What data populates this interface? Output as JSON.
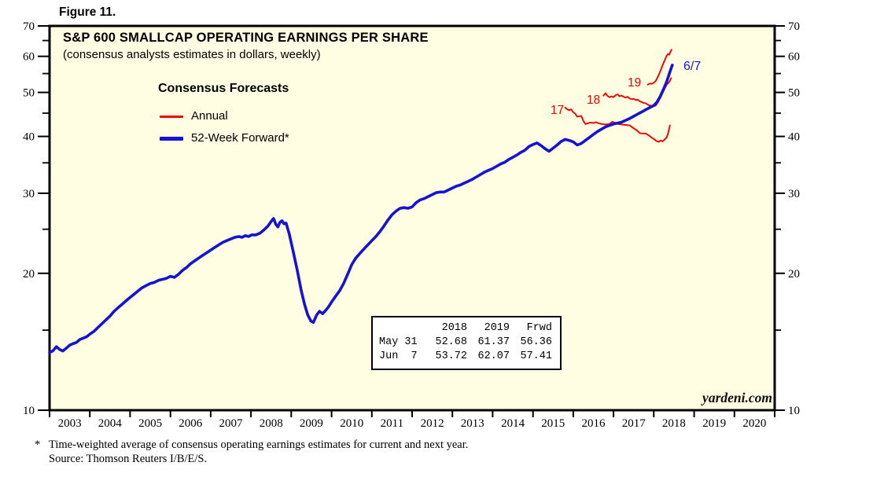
{
  "figure_label": "Figure 11.",
  "chart": {
    "title": "S&P 600 SMALLCAP OPERATING EARNINGS PER SHARE",
    "subtitle": "(consensus analysts estimates in dollars, weekly)",
    "legend_title": "Consensus Forecasts",
    "legend": [
      {
        "label": "Annual",
        "color": "#ee0000"
      },
      {
        "label": "52-Week Forward*",
        "color": "#1414d2"
      }
    ],
    "watermark": "yardeni.com"
  },
  "annotations": [
    {
      "text": "17",
      "color": "#ee0000"
    },
    {
      "text": "18",
      "color": "#ee0000"
    },
    {
      "text": "19",
      "color": "#ee0000"
    },
    {
      "text": "6/7",
      "color": "#1414d2"
    }
  ],
  "inset_table": {
    "col_headers": [
      "2018",
      "2019",
      "Frwd"
    ],
    "rows": [
      {
        "label": "May 31",
        "y2018": "52.68",
        "y2019": "61.37",
        "frwd": "56.36"
      },
      {
        "label": "Jun  7",
        "y2018": "53.72",
        "y2019": "62.07",
        "frwd": "57.41"
      }
    ]
  },
  "footnote": {
    "marker": "*",
    "line1": "Time-weighted average of consensus operating earnings estimates for current and next year.",
    "line2": "Source: Thomson Reuters I/B/E/S."
  },
  "chart_data": {
    "type": "line",
    "title": "S&P 600 SMALLCAP OPERATING EARNINGS PER SHARE",
    "subtitle": "(consensus analysts estimates in dollars, weekly)",
    "y_scale": "log",
    "ylim": [
      10,
      70
    ],
    "xlim": [
      2003,
      2021
    ],
    "plot_bg": "#fffee2",
    "frame_color": "#000000",
    "y_ticks_major": [
      10,
      20,
      30,
      40,
      50,
      60,
      70
    ],
    "y_ticks_minor": [
      15,
      25,
      35,
      45,
      55,
      65
    ],
    "x_tick_years": [
      2003,
      2004,
      2005,
      2006,
      2007,
      2008,
      2009,
      2010,
      2011,
      2012,
      2013,
      2014,
      2015,
      2016,
      2017,
      2018,
      2019,
      2020,
      2021
    ],
    "x_year_labels": [
      "2003",
      "2004",
      "2005",
      "2006",
      "2007",
      "2008",
      "2009",
      "2010",
      "2011",
      "2012",
      "2013",
      "2014",
      "2015",
      "2016",
      "2017",
      "2018",
      "2019",
      "2020"
    ],
    "legend_position": "top-left-inside",
    "grid": false,
    "series": [
      {
        "name": "annual-2017-estimate",
        "legend": "Annual",
        "color": "#ee0000",
        "width": 1.9,
        "points": [
          [
            2015.8,
            46.3
          ],
          [
            2015.85,
            45.9
          ],
          [
            2015.9,
            45.7
          ],
          [
            2015.95,
            45.9
          ],
          [
            2016.0,
            45.2
          ],
          [
            2016.05,
            44.9
          ],
          [
            2016.1,
            44.2
          ],
          [
            2016.15,
            44.3
          ],
          [
            2016.2,
            44.4
          ],
          [
            2016.25,
            43.3
          ],
          [
            2016.3,
            42.6
          ],
          [
            2016.35,
            42.7
          ],
          [
            2016.42,
            42.9
          ],
          [
            2016.5,
            42.8
          ],
          [
            2016.56,
            43.0
          ],
          [
            2016.62,
            42.8
          ],
          [
            2016.7,
            42.6
          ],
          [
            2016.8,
            42.5
          ],
          [
            2016.9,
            42.6
          ],
          [
            2016.97,
            43.1
          ],
          [
            2017.03,
            42.9
          ],
          [
            2017.1,
            42.6
          ],
          [
            2017.2,
            42.5
          ],
          [
            2017.3,
            42.4
          ],
          [
            2017.4,
            42.3
          ],
          [
            2017.5,
            41.7
          ],
          [
            2017.6,
            41.1
          ],
          [
            2017.65,
            40.7
          ],
          [
            2017.72,
            40.6
          ],
          [
            2017.8,
            40.6
          ],
          [
            2017.88,
            40.2
          ],
          [
            2017.94,
            39.8
          ],
          [
            2018.0,
            39.5
          ],
          [
            2018.06,
            39.1
          ],
          [
            2018.12,
            38.9
          ],
          [
            2018.17,
            39.2
          ],
          [
            2018.22,
            39.0
          ],
          [
            2018.27,
            39.4
          ],
          [
            2018.32,
            39.8
          ],
          [
            2018.36,
            40.8
          ],
          [
            2018.4,
            42.3
          ]
        ]
      },
      {
        "name": "annual-2018-estimate",
        "legend": "Annual",
        "color": "#ee0000",
        "width": 1.9,
        "points": [
          [
            2016.75,
            49.2
          ],
          [
            2016.8,
            49.8
          ],
          [
            2016.85,
            49.1
          ],
          [
            2016.9,
            48.8
          ],
          [
            2016.95,
            49.0
          ],
          [
            2017.0,
            48.8
          ],
          [
            2017.05,
            49.3
          ],
          [
            2017.1,
            49.5
          ],
          [
            2017.15,
            49.0
          ],
          [
            2017.2,
            49.2
          ],
          [
            2017.25,
            48.9
          ],
          [
            2017.3,
            48.7
          ],
          [
            2017.35,
            48.9
          ],
          [
            2017.4,
            48.5
          ],
          [
            2017.45,
            48.3
          ],
          [
            2017.5,
            48.4
          ],
          [
            2017.55,
            48.1
          ],
          [
            2017.6,
            48.2
          ],
          [
            2017.65,
            47.8
          ],
          [
            2017.7,
            47.6
          ],
          [
            2017.75,
            47.4
          ],
          [
            2017.8,
            47.3
          ],
          [
            2017.85,
            47.0
          ],
          [
            2017.9,
            46.8
          ],
          [
            2017.95,
            46.7
          ],
          [
            2018.0,
            46.6
          ],
          [
            2018.05,
            46.8
          ],
          [
            2018.1,
            47.5
          ],
          [
            2018.16,
            48.6
          ],
          [
            2018.22,
            49.9
          ],
          [
            2018.28,
            51.2
          ],
          [
            2018.33,
            52.1
          ],
          [
            2018.37,
            52.5
          ],
          [
            2018.4,
            53.0
          ],
          [
            2018.43,
            53.72
          ]
        ]
      },
      {
        "name": "annual-2019-estimate",
        "legend": "Annual",
        "color": "#ee0000",
        "width": 1.9,
        "points": [
          [
            2017.85,
            52.0
          ],
          [
            2017.9,
            52.3
          ],
          [
            2017.95,
            52.2
          ],
          [
            2018.0,
            52.5
          ],
          [
            2018.05,
            53.0
          ],
          [
            2018.1,
            54.1
          ],
          [
            2018.16,
            55.6
          ],
          [
            2018.22,
            57.4
          ],
          [
            2018.28,
            59.1
          ],
          [
            2018.32,
            60.2
          ],
          [
            2018.35,
            60.7
          ],
          [
            2018.38,
            60.5
          ],
          [
            2018.41,
            61.3
          ],
          [
            2018.44,
            62.07
          ]
        ]
      },
      {
        "name": "52-week-forward",
        "legend": "52-Week Forward*",
        "color": "#1414d2",
        "width": 3.6,
        "points": [
          [
            2003.0,
            13.4
          ],
          [
            2003.08,
            13.5
          ],
          [
            2003.17,
            13.8
          ],
          [
            2003.25,
            13.6
          ],
          [
            2003.33,
            13.5
          ],
          [
            2003.42,
            13.7
          ],
          [
            2003.5,
            13.9
          ],
          [
            2003.58,
            14.0
          ],
          [
            2003.67,
            14.1
          ],
          [
            2003.75,
            14.3
          ],
          [
            2003.83,
            14.4
          ],
          [
            2003.92,
            14.5
          ],
          [
            2004.0,
            14.7
          ],
          [
            2004.1,
            14.9
          ],
          [
            2004.2,
            15.2
          ],
          [
            2004.3,
            15.5
          ],
          [
            2004.4,
            15.8
          ],
          [
            2004.5,
            16.1
          ],
          [
            2004.6,
            16.5
          ],
          [
            2004.7,
            16.8
          ],
          [
            2004.8,
            17.1
          ],
          [
            2004.9,
            17.4
          ],
          [
            2005.0,
            17.7
          ],
          [
            2005.1,
            18.0
          ],
          [
            2005.2,
            18.3
          ],
          [
            2005.3,
            18.6
          ],
          [
            2005.4,
            18.8
          ],
          [
            2005.5,
            19.0
          ],
          [
            2005.6,
            19.1
          ],
          [
            2005.7,
            19.3
          ],
          [
            2005.8,
            19.4
          ],
          [
            2005.9,
            19.5
          ],
          [
            2006.0,
            19.7
          ],
          [
            2006.1,
            19.6
          ],
          [
            2006.2,
            19.9
          ],
          [
            2006.3,
            20.3
          ],
          [
            2006.4,
            20.6
          ],
          [
            2006.5,
            21.0
          ],
          [
            2006.6,
            21.3
          ],
          [
            2006.7,
            21.6
          ],
          [
            2006.8,
            21.9
          ],
          [
            2006.9,
            22.2
          ],
          [
            2007.0,
            22.5
          ],
          [
            2007.1,
            22.8
          ],
          [
            2007.2,
            23.1
          ],
          [
            2007.3,
            23.4
          ],
          [
            2007.4,
            23.6
          ],
          [
            2007.5,
            23.8
          ],
          [
            2007.6,
            24.0
          ],
          [
            2007.7,
            24.1
          ],
          [
            2007.78,
            24.0
          ],
          [
            2007.86,
            24.2
          ],
          [
            2007.94,
            24.1
          ],
          [
            2008.02,
            24.3
          ],
          [
            2008.12,
            24.3
          ],
          [
            2008.22,
            24.5
          ],
          [
            2008.32,
            24.9
          ],
          [
            2008.42,
            25.4
          ],
          [
            2008.5,
            26.0
          ],
          [
            2008.56,
            26.4
          ],
          [
            2008.62,
            25.6
          ],
          [
            2008.67,
            25.3
          ],
          [
            2008.72,
            25.9
          ],
          [
            2008.77,
            26.1
          ],
          [
            2008.82,
            25.7
          ],
          [
            2008.87,
            25.8
          ],
          [
            2008.95,
            24.4
          ],
          [
            2009.05,
            22.3
          ],
          [
            2009.15,
            20.3
          ],
          [
            2009.25,
            18.3
          ],
          [
            2009.33,
            17.1
          ],
          [
            2009.41,
            16.2
          ],
          [
            2009.49,
            15.7
          ],
          [
            2009.55,
            15.6
          ],
          [
            2009.63,
            16.2
          ],
          [
            2009.7,
            16.5
          ],
          [
            2009.78,
            16.3
          ],
          [
            2009.86,
            16.6
          ],
          [
            2009.93,
            16.9
          ],
          [
            2010.0,
            17.3
          ],
          [
            2010.1,
            17.8
          ],
          [
            2010.2,
            18.3
          ],
          [
            2010.3,
            19.0
          ],
          [
            2010.4,
            19.9
          ],
          [
            2010.5,
            20.9
          ],
          [
            2010.6,
            21.6
          ],
          [
            2010.7,
            22.1
          ],
          [
            2010.8,
            22.6
          ],
          [
            2010.9,
            23.1
          ],
          [
            2011.0,
            23.6
          ],
          [
            2011.1,
            24.1
          ],
          [
            2011.2,
            24.7
          ],
          [
            2011.3,
            25.4
          ],
          [
            2011.4,
            26.2
          ],
          [
            2011.5,
            26.9
          ],
          [
            2011.6,
            27.4
          ],
          [
            2011.7,
            27.8
          ],
          [
            2011.8,
            27.9
          ],
          [
            2011.9,
            27.8
          ],
          [
            2012.0,
            28.0
          ],
          [
            2012.1,
            28.6
          ],
          [
            2012.2,
            29.0
          ],
          [
            2012.3,
            29.2
          ],
          [
            2012.4,
            29.5
          ],
          [
            2012.5,
            29.8
          ],
          [
            2012.6,
            30.1
          ],
          [
            2012.7,
            30.2
          ],
          [
            2012.8,
            30.2
          ],
          [
            2012.9,
            30.5
          ],
          [
            2013.0,
            30.8
          ],
          [
            2013.1,
            31.1
          ],
          [
            2013.2,
            31.3
          ],
          [
            2013.3,
            31.6
          ],
          [
            2013.4,
            31.9
          ],
          [
            2013.5,
            32.2
          ],
          [
            2013.6,
            32.6
          ],
          [
            2013.7,
            33.0
          ],
          [
            2013.8,
            33.4
          ],
          [
            2013.9,
            33.7
          ],
          [
            2014.0,
            34.0
          ],
          [
            2014.1,
            34.4
          ],
          [
            2014.2,
            34.8
          ],
          [
            2014.3,
            35.1
          ],
          [
            2014.4,
            35.6
          ],
          [
            2014.5,
            36.0
          ],
          [
            2014.6,
            36.4
          ],
          [
            2014.7,
            36.9
          ],
          [
            2014.8,
            37.3
          ],
          [
            2014.9,
            38.0
          ],
          [
            2015.0,
            38.4
          ],
          [
            2015.1,
            38.7
          ],
          [
            2015.2,
            38.2
          ],
          [
            2015.3,
            37.6
          ],
          [
            2015.4,
            37.1
          ],
          [
            2015.5,
            37.7
          ],
          [
            2015.6,
            38.3
          ],
          [
            2015.7,
            39.0
          ],
          [
            2015.8,
            39.4
          ],
          [
            2015.9,
            39.2
          ],
          [
            2016.0,
            38.9
          ],
          [
            2016.1,
            38.3
          ],
          [
            2016.2,
            38.6
          ],
          [
            2016.3,
            39.2
          ],
          [
            2016.4,
            39.8
          ],
          [
            2016.5,
            40.4
          ],
          [
            2016.6,
            41.0
          ],
          [
            2016.7,
            41.5
          ],
          [
            2016.8,
            42.0
          ],
          [
            2016.9,
            42.3
          ],
          [
            2017.0,
            42.6
          ],
          [
            2017.1,
            42.8
          ],
          [
            2017.2,
            43.0
          ],
          [
            2017.3,
            43.4
          ],
          [
            2017.4,
            43.8
          ],
          [
            2017.5,
            44.3
          ],
          [
            2017.6,
            44.8
          ],
          [
            2017.7,
            45.3
          ],
          [
            2017.8,
            45.8
          ],
          [
            2017.9,
            46.3
          ],
          [
            2018.0,
            46.8
          ],
          [
            2018.08,
            47.6
          ],
          [
            2018.16,
            49.0
          ],
          [
            2018.24,
            50.8
          ],
          [
            2018.32,
            52.8
          ],
          [
            2018.38,
            54.8
          ],
          [
            2018.43,
            56.5
          ],
          [
            2018.46,
            57.41
          ]
        ]
      }
    ]
  }
}
